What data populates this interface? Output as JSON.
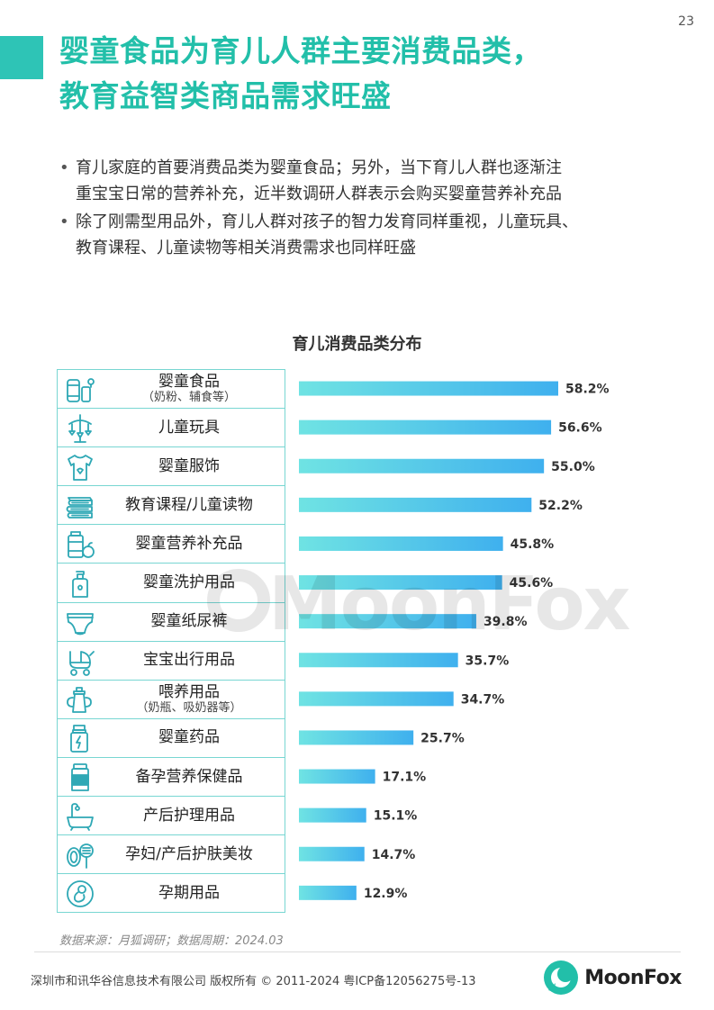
{
  "page": {
    "number": "23"
  },
  "header": {
    "title_line1": "婴童食品为育儿人群主要消费品类，",
    "title_line2": "教育益智类商品需求旺盛"
  },
  "bullets": [
    {
      "line1": "育儿家庭的首要消费品类为婴童食品；另外，当下育儿人群也逐渐注",
      "line2": "重宝宝日常的营养补充，近半数调研人群表示会购买婴童营养补充品"
    },
    {
      "line1": "除了刚需型用品外，育儿人群对孩子的智力发育同样重视，儿童玩具、",
      "line2": "教育课程、儿童读物等相关消费需求也同样旺盛"
    }
  ],
  "bullet_symbol": "•",
  "chart_data": {
    "type": "bar",
    "orientation": "horizontal",
    "title": "育儿消费品类分布",
    "categories": [
      {
        "label": "婴童食品",
        "note": "（奶粉、辅食等）",
        "icon": "food-cans-icon"
      },
      {
        "label": "儿童玩具",
        "note": "",
        "icon": "baby-mobile-icon"
      },
      {
        "label": "婴童服饰",
        "note": "",
        "icon": "baby-shirt-icon"
      },
      {
        "label": "教育课程/儿童读物",
        "note": "",
        "icon": "books-icon"
      },
      {
        "label": "婴童营养补充品",
        "note": "",
        "icon": "supplement-bottle-icon"
      },
      {
        "label": "婴童洗护用品",
        "note": "",
        "icon": "lotion-pump-icon"
      },
      {
        "label": "婴童纸尿裤",
        "note": "",
        "icon": "diaper-icon"
      },
      {
        "label": "宝宝出行用品",
        "note": "",
        "icon": "stroller-icon"
      },
      {
        "label": "喂养用品",
        "note": "（奶瓶、吸奶器等）",
        "icon": "sippy-cup-icon"
      },
      {
        "label": "婴童药品",
        "note": "",
        "icon": "medicine-bottle-icon"
      },
      {
        "label": "备孕营养保健品",
        "note": "",
        "icon": "health-jar-icon"
      },
      {
        "label": "产后护理用品",
        "note": "",
        "icon": "bathtub-icon"
      },
      {
        "label": "孕妇/产后护肤美妆",
        "note": "",
        "icon": "cosmetics-icon"
      },
      {
        "label": "孕期用品",
        "note": "",
        "icon": "fetus-icon"
      }
    ],
    "values": [
      58.2,
      56.6,
      55.0,
      52.2,
      45.8,
      45.6,
      39.8,
      35.7,
      34.7,
      25.7,
      17.1,
      15.1,
      14.7,
      12.9
    ],
    "value_labels": [
      "58.2%",
      "56.6%",
      "55.0%",
      "52.2%",
      "45.8%",
      "45.6%",
      "39.8%",
      "35.7%",
      "34.7%",
      "25.7%",
      "17.1%",
      "15.1%",
      "14.7%",
      "12.9%"
    ],
    "unit": "%",
    "xlim": [
      0,
      100
    ],
    "grid": false,
    "bar_colors": [
      "#6fe3e3",
      "#3fb0ee"
    ]
  },
  "watermark": {
    "text": "MoonFox"
  },
  "footer": {
    "source": "数据来源：月狐调研；数据周期：2024.03",
    "copyright": "深圳市和讯华谷信息技术有限公司 版权所有 © 2011-2024 粤ICP备12056275号-13",
    "brand_name": "MoonFox"
  },
  "colors": {
    "accent": "#22bfa9",
    "table_border": "#78d6d2",
    "icon_stroke": "#2ea8b5"
  }
}
